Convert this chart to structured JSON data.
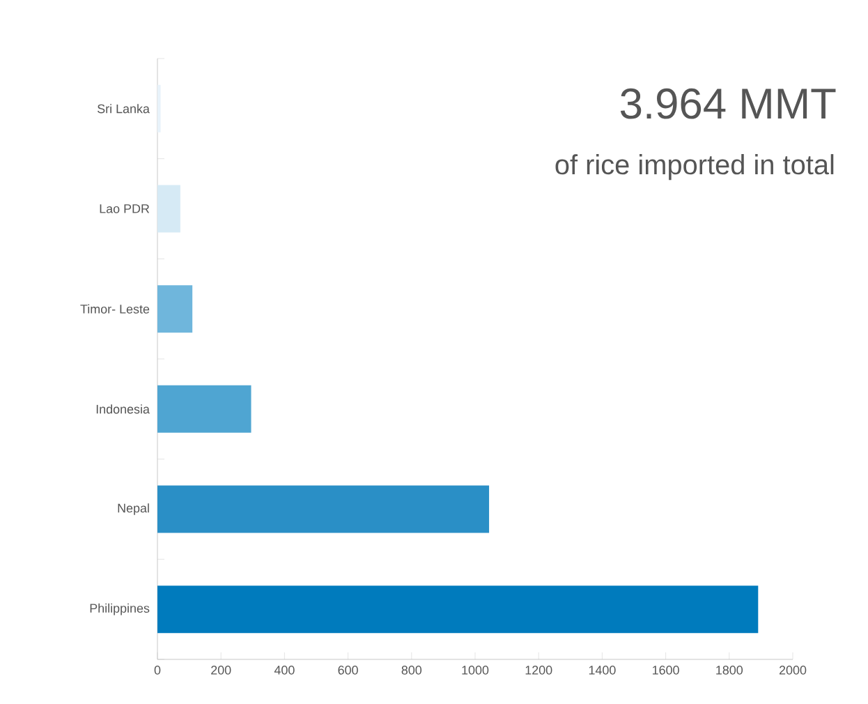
{
  "chart_data": {
    "type": "bar",
    "orientation": "horizontal",
    "title": "3.964 MMT",
    "subtitle": "of rice imported in total",
    "categories": [
      "Sri Lanka",
      "Lao PDR",
      "Timor- Leste",
      "Indonesia",
      "Nepal",
      "Philippines"
    ],
    "values": [
      10,
      72,
      110,
      295,
      1044,
      1891
    ],
    "colors": [
      "#e8f2fa",
      "#d6eaf5",
      "#6fb6dc",
      "#4fa5d2",
      "#2a8fc6",
      "#007bbd"
    ],
    "xlim": [
      0,
      2000
    ],
    "xticks": [
      0,
      200,
      400,
      600,
      800,
      1000,
      1200,
      1400,
      1600,
      1800,
      2000
    ],
    "grid": false
  }
}
